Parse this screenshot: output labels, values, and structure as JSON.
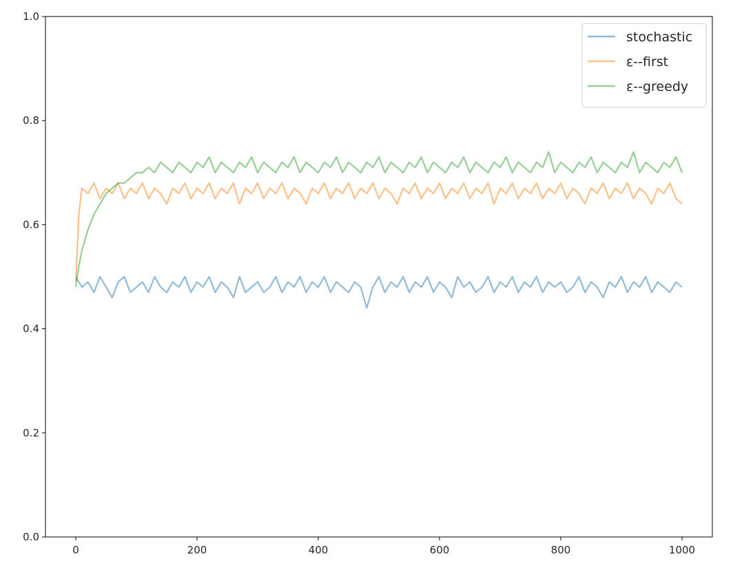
{
  "chart_data": {
    "type": "line",
    "title": "",
    "xlabel": "",
    "ylabel": "",
    "xlim": [
      -50,
      1050
    ],
    "ylim": [
      0.0,
      1.0
    ],
    "x_ticks": [
      0,
      200,
      400,
      600,
      800,
      1000
    ],
    "x_tick_labels": [
      "0",
      "200",
      "400",
      "600",
      "800",
      "1000"
    ],
    "y_ticks": [
      0.0,
      0.2,
      0.4,
      0.6,
      0.8,
      1.0
    ],
    "y_tick_labels": [
      "0.0",
      "0.2",
      "0.4",
      "0.6",
      "0.8",
      "1.0"
    ],
    "grid": false,
    "legend_position": "top-right",
    "series": [
      {
        "name": "stochastic",
        "color": "#1f77b4",
        "x": [
          0,
          10,
          20,
          30,
          40,
          50,
          60,
          70,
          80,
          90,
          100,
          110,
          120,
          130,
          140,
          150,
          160,
          170,
          180,
          190,
          200,
          210,
          220,
          230,
          240,
          250,
          260,
          270,
          280,
          290,
          300,
          310,
          320,
          330,
          340,
          350,
          360,
          370,
          380,
          390,
          400,
          410,
          420,
          430,
          440,
          450,
          460,
          470,
          480,
          490,
          500,
          510,
          520,
          530,
          540,
          550,
          560,
          570,
          580,
          590,
          600,
          610,
          620,
          630,
          640,
          650,
          660,
          670,
          680,
          690,
          700,
          710,
          720,
          730,
          740,
          750,
          760,
          770,
          780,
          790,
          800,
          810,
          820,
          830,
          840,
          850,
          860,
          870,
          880,
          890,
          900,
          910,
          920,
          930,
          940,
          950,
          960,
          970,
          980,
          990,
          1000
        ],
        "y": [
          0.5,
          0.48,
          0.49,
          0.47,
          0.5,
          0.48,
          0.46,
          0.49,
          0.5,
          0.47,
          0.48,
          0.49,
          0.47,
          0.5,
          0.48,
          0.47,
          0.49,
          0.48,
          0.5,
          0.47,
          0.49,
          0.48,
          0.5,
          0.47,
          0.49,
          0.48,
          0.46,
          0.5,
          0.47,
          0.48,
          0.49,
          0.47,
          0.48,
          0.5,
          0.47,
          0.49,
          0.48,
          0.5,
          0.47,
          0.49,
          0.48,
          0.5,
          0.47,
          0.49,
          0.48,
          0.47,
          0.49,
          0.48,
          0.44,
          0.48,
          0.5,
          0.47,
          0.49,
          0.48,
          0.5,
          0.47,
          0.49,
          0.48,
          0.5,
          0.47,
          0.49,
          0.48,
          0.46,
          0.5,
          0.48,
          0.49,
          0.47,
          0.48,
          0.5,
          0.47,
          0.49,
          0.48,
          0.5,
          0.47,
          0.49,
          0.48,
          0.5,
          0.47,
          0.49,
          0.48,
          0.49,
          0.47,
          0.48,
          0.5,
          0.47,
          0.49,
          0.48,
          0.46,
          0.49,
          0.48,
          0.5,
          0.47,
          0.49,
          0.48,
          0.5,
          0.47,
          0.49,
          0.48,
          0.47,
          0.49,
          0.48
        ]
      },
      {
        "name": "ε--first",
        "color": "#ff7f0e",
        "x": [
          0,
          5,
          10,
          20,
          30,
          40,
          50,
          60,
          70,
          80,
          90,
          100,
          110,
          120,
          130,
          140,
          150,
          160,
          170,
          180,
          190,
          200,
          210,
          220,
          230,
          240,
          250,
          260,
          270,
          280,
          290,
          300,
          310,
          320,
          330,
          340,
          350,
          360,
          370,
          380,
          390,
          400,
          410,
          420,
          430,
          440,
          450,
          460,
          470,
          480,
          490,
          500,
          510,
          520,
          530,
          540,
          550,
          560,
          570,
          580,
          590,
          600,
          610,
          620,
          630,
          640,
          650,
          660,
          670,
          680,
          690,
          700,
          710,
          720,
          730,
          740,
          750,
          760,
          770,
          780,
          790,
          800,
          810,
          820,
          830,
          840,
          850,
          860,
          870,
          880,
          890,
          900,
          910,
          920,
          930,
          940,
          950,
          960,
          970,
          980,
          990,
          1000
        ],
        "y": [
          0.49,
          0.62,
          0.67,
          0.66,
          0.68,
          0.65,
          0.67,
          0.66,
          0.68,
          0.65,
          0.67,
          0.66,
          0.68,
          0.65,
          0.67,
          0.66,
          0.64,
          0.67,
          0.66,
          0.68,
          0.65,
          0.67,
          0.66,
          0.68,
          0.65,
          0.67,
          0.66,
          0.68,
          0.64,
          0.67,
          0.66,
          0.68,
          0.65,
          0.67,
          0.66,
          0.68,
          0.65,
          0.67,
          0.66,
          0.64,
          0.67,
          0.66,
          0.68,
          0.65,
          0.67,
          0.66,
          0.68,
          0.65,
          0.67,
          0.66,
          0.68,
          0.65,
          0.67,
          0.66,
          0.64,
          0.67,
          0.66,
          0.68,
          0.65,
          0.67,
          0.66,
          0.68,
          0.65,
          0.67,
          0.66,
          0.68,
          0.65,
          0.67,
          0.66,
          0.68,
          0.64,
          0.67,
          0.66,
          0.68,
          0.65,
          0.67,
          0.66,
          0.68,
          0.65,
          0.67,
          0.66,
          0.68,
          0.65,
          0.67,
          0.66,
          0.64,
          0.67,
          0.66,
          0.68,
          0.65,
          0.67,
          0.66,
          0.68,
          0.65,
          0.67,
          0.66,
          0.64,
          0.67,
          0.66,
          0.68,
          0.65,
          0.64
        ]
      },
      {
        "name": "ε--greedy",
        "color": "#2ca02c",
        "x": [
          0,
          5,
          10,
          20,
          30,
          40,
          50,
          60,
          70,
          80,
          90,
          100,
          110,
          120,
          130,
          140,
          150,
          160,
          170,
          180,
          190,
          200,
          210,
          220,
          230,
          240,
          250,
          260,
          270,
          280,
          290,
          300,
          310,
          320,
          330,
          340,
          350,
          360,
          370,
          380,
          390,
          400,
          410,
          420,
          430,
          440,
          450,
          460,
          470,
          480,
          490,
          500,
          510,
          520,
          530,
          540,
          550,
          560,
          570,
          580,
          590,
          600,
          610,
          620,
          630,
          640,
          650,
          660,
          670,
          680,
          690,
          700,
          710,
          720,
          730,
          740,
          750,
          760,
          770,
          780,
          790,
          800,
          810,
          820,
          830,
          840,
          850,
          860,
          870,
          880,
          890,
          900,
          910,
          920,
          930,
          940,
          950,
          960,
          970,
          980,
          990,
          1000
        ],
        "y": [
          0.48,
          0.52,
          0.55,
          0.59,
          0.62,
          0.64,
          0.66,
          0.67,
          0.68,
          0.68,
          0.69,
          0.7,
          0.7,
          0.71,
          0.7,
          0.72,
          0.71,
          0.7,
          0.72,
          0.71,
          0.7,
          0.72,
          0.71,
          0.73,
          0.7,
          0.72,
          0.71,
          0.7,
          0.72,
          0.71,
          0.73,
          0.7,
          0.72,
          0.71,
          0.7,
          0.72,
          0.71,
          0.73,
          0.7,
          0.72,
          0.71,
          0.7,
          0.72,
          0.71,
          0.73,
          0.7,
          0.72,
          0.71,
          0.7,
          0.72,
          0.71,
          0.73,
          0.7,
          0.72,
          0.71,
          0.7,
          0.72,
          0.71,
          0.73,
          0.7,
          0.72,
          0.71,
          0.7,
          0.72,
          0.71,
          0.73,
          0.7,
          0.72,
          0.71,
          0.7,
          0.72,
          0.71,
          0.73,
          0.7,
          0.72,
          0.71,
          0.7,
          0.72,
          0.71,
          0.74,
          0.7,
          0.72,
          0.71,
          0.7,
          0.72,
          0.71,
          0.73,
          0.7,
          0.72,
          0.71,
          0.7,
          0.72,
          0.71,
          0.74,
          0.7,
          0.72,
          0.71,
          0.7,
          0.72,
          0.71,
          0.73,
          0.7
        ]
      }
    ]
  }
}
